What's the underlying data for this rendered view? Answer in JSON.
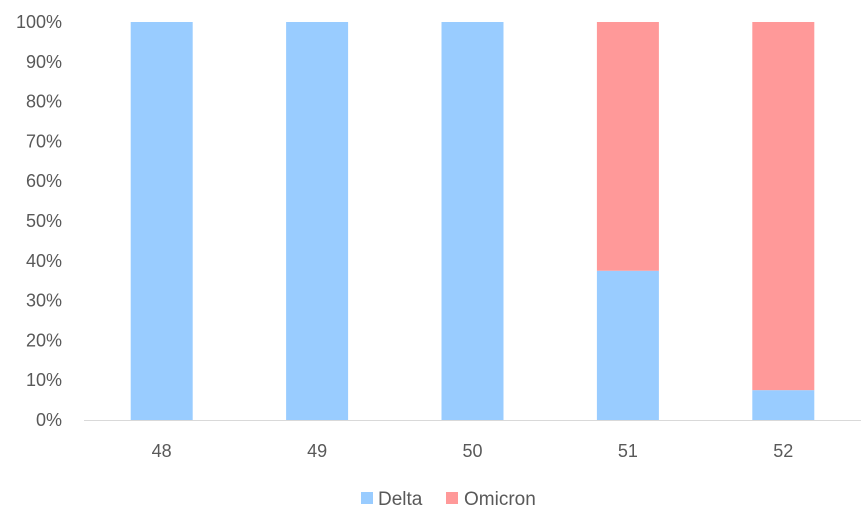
{
  "chart_data": {
    "type": "bar",
    "stacked": true,
    "percent_stacked": true,
    "categories": [
      "48",
      "49",
      "50",
      "51",
      "52"
    ],
    "series": [
      {
        "name": "Delta",
        "color": "#99CCFF",
        "values": [
          100,
          100,
          100,
          37.5,
          7.5
        ]
      },
      {
        "name": "Omicron",
        "color": "#FF9999",
        "values": [
          0,
          0,
          0,
          62.5,
          92.5
        ]
      }
    ],
    "ylim": [
      0,
      100
    ],
    "y_ticks": [
      0,
      10,
      20,
      30,
      40,
      50,
      60,
      70,
      80,
      90,
      100
    ],
    "y_tick_labels": [
      "0%",
      "10%",
      "20%",
      "30%",
      "40%",
      "50%",
      "60%",
      "70%",
      "80%",
      "90%",
      "100%"
    ],
    "grid": false,
    "legend_position": "bottom",
    "title": "",
    "xlabel": "",
    "ylabel": ""
  }
}
